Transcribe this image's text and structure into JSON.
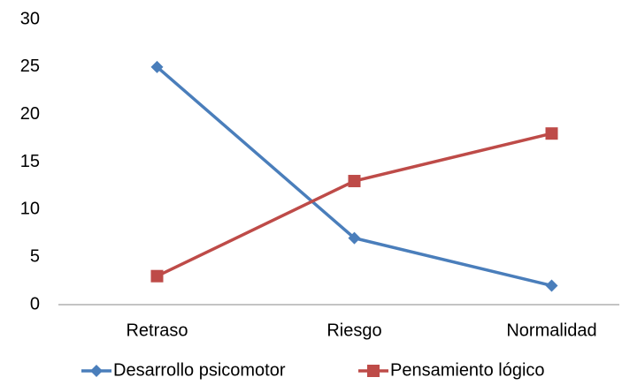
{
  "chart_data": {
    "type": "line",
    "categories": [
      "Retraso",
      "Riesgo",
      "Normalidad"
    ],
    "series": [
      {
        "name": "Desarrollo psicomotor",
        "color": "#4a7ebb",
        "marker": "diamond",
        "values": [
          25,
          7,
          2
        ]
      },
      {
        "name": "Pensamiento lógico",
        "color": "#be4b48",
        "marker": "square",
        "values": [
          3,
          13,
          18
        ]
      }
    ],
    "ylim": [
      0,
      30
    ],
    "yticks": [
      0,
      5,
      10,
      15,
      20,
      25,
      30
    ],
    "grid": false,
    "legend": "bottom"
  }
}
